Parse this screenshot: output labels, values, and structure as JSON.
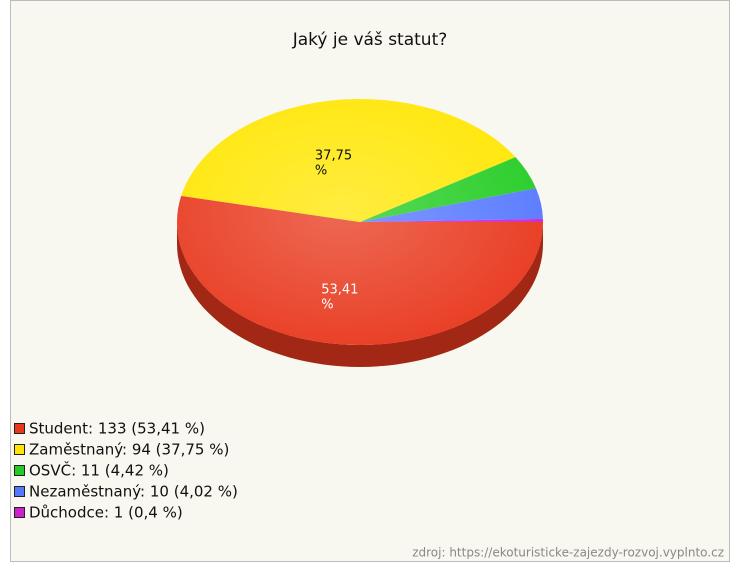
{
  "chart_data": {
    "type": "pie",
    "title": "Jaký je váš statut?",
    "categories": [
      "Student: 133 (53,41 %)",
      "Zaměstnaný: 94 (37,75 %)",
      "OSVČ: 11 (4,42 %)",
      "Nezaměstnaný: 10 (4,02 %)",
      "Důchodce: 1 (0,4 %)"
    ],
    "values": [
      53.41,
      37.75,
      4.42,
      4.02,
      0.4
    ],
    "value_labels": [
      "53,41 %",
      "37,75 %",
      null,
      null,
      null
    ],
    "colors": [
      "#e8371c",
      "#ffe600",
      "#22cc22",
      "#5577ff",
      "#cc22cc"
    ],
    "source": "zdroj: https://ekoturisticke-zajezdy-rozvoj.vyplnto.cz"
  }
}
